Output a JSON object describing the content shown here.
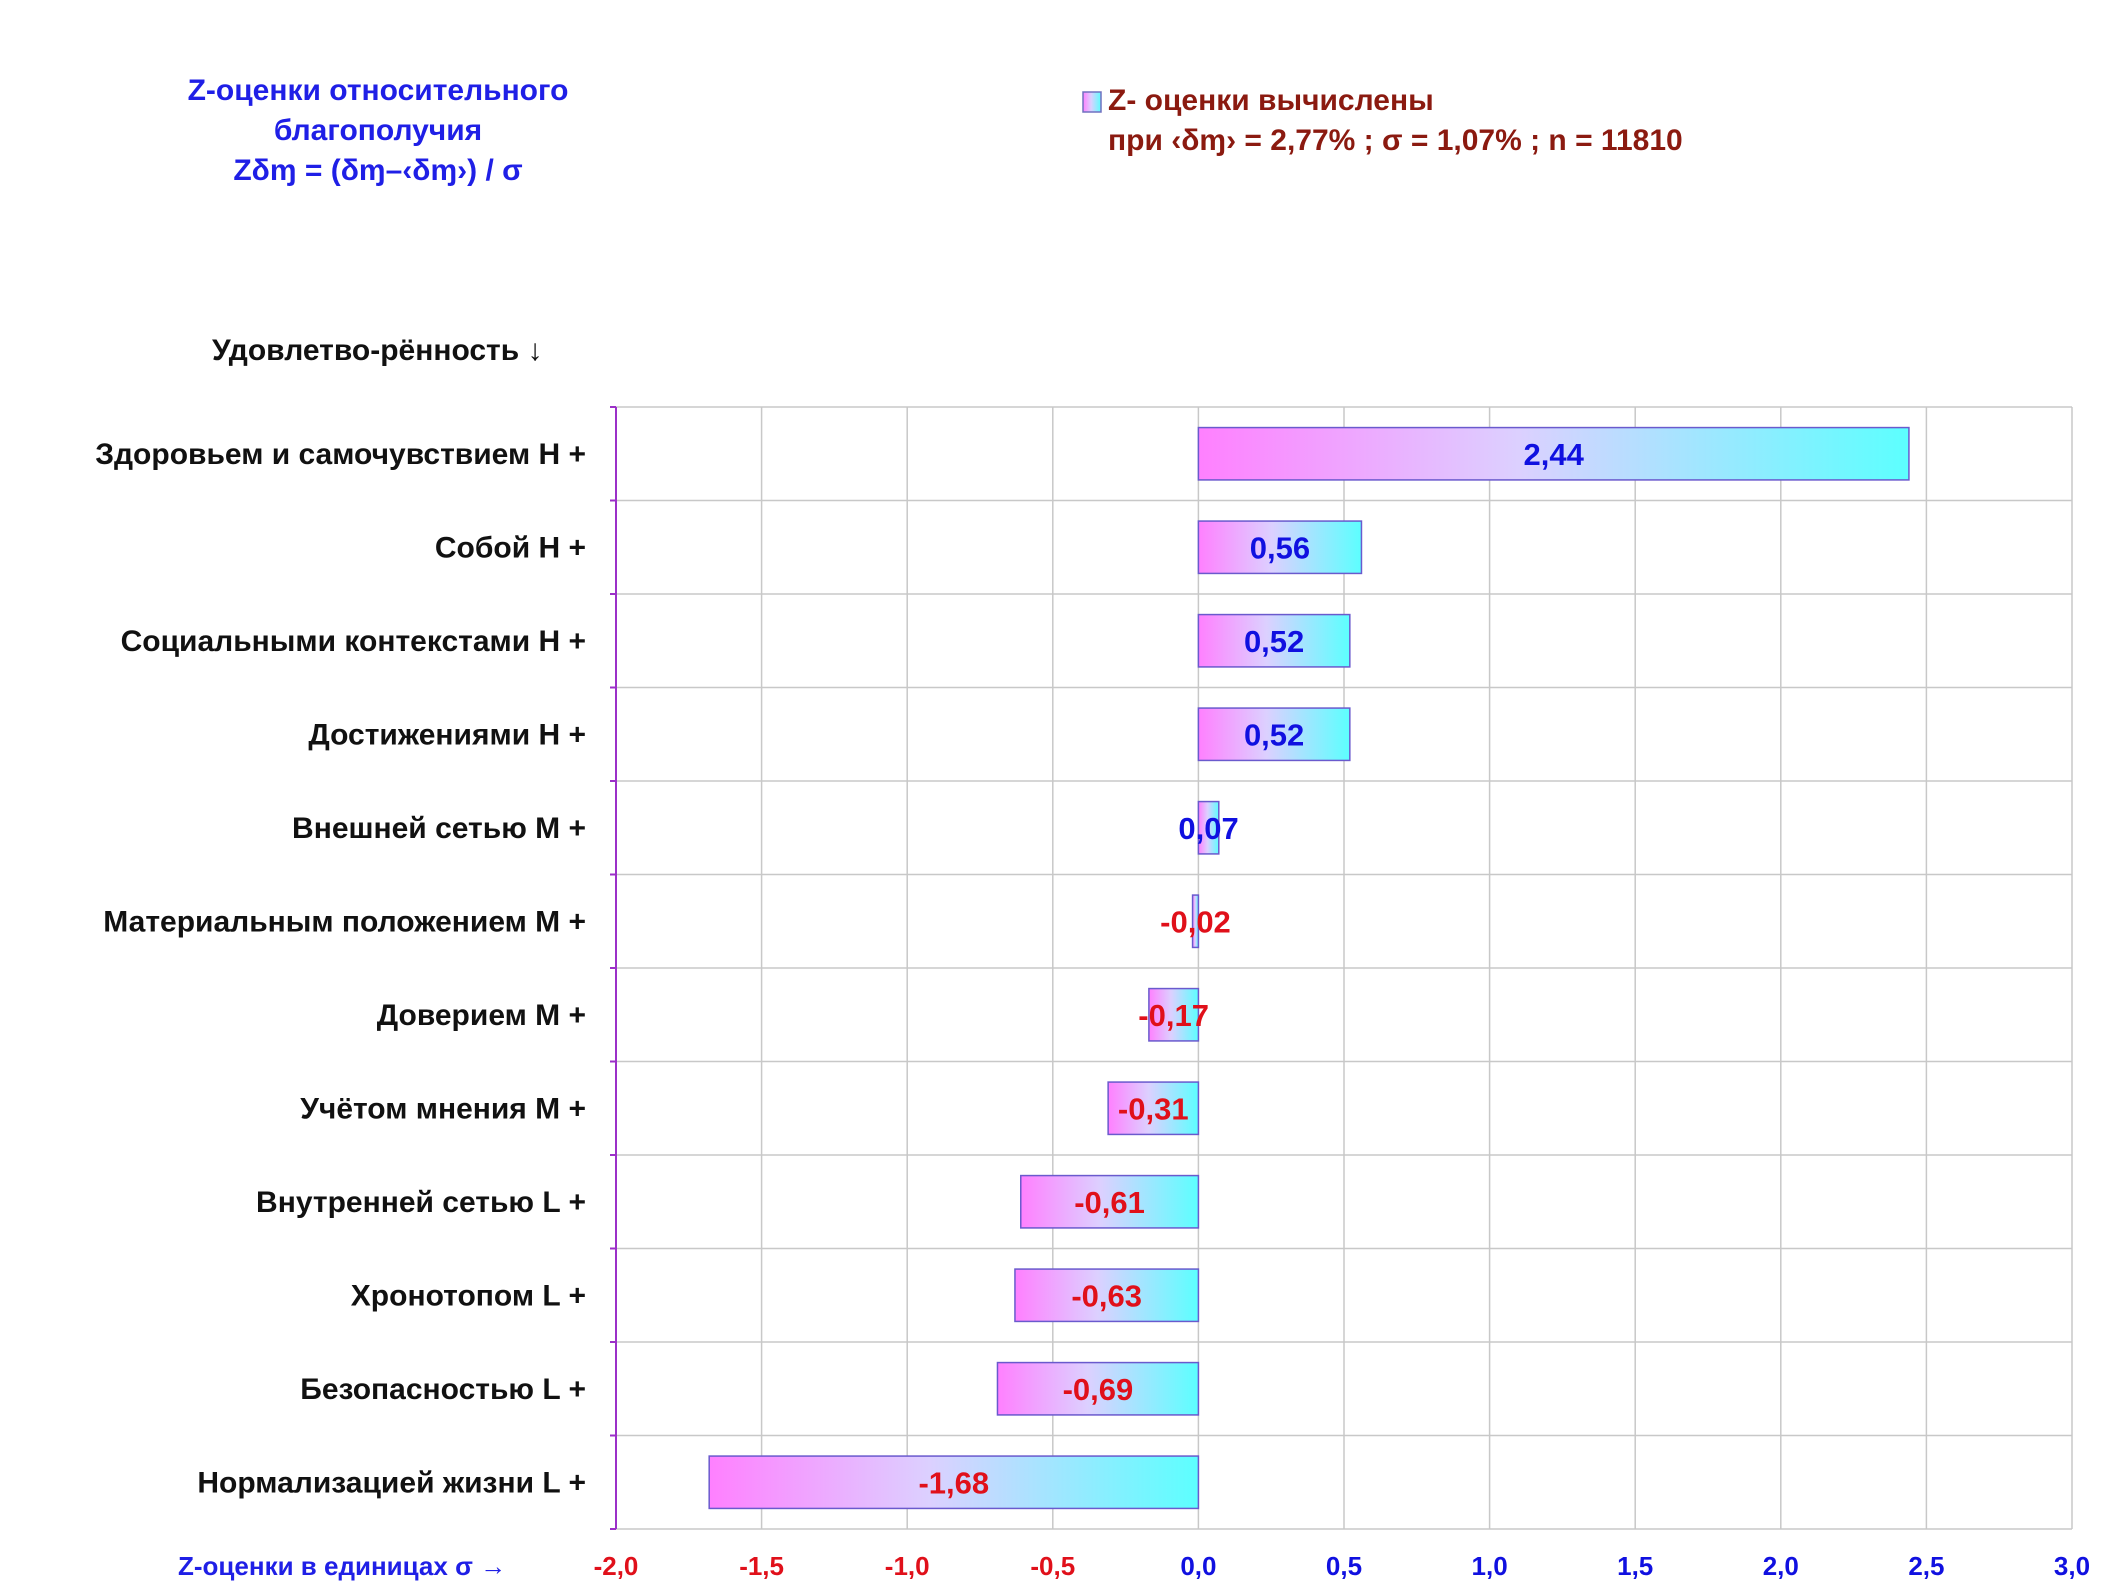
{
  "chart_data": {
    "type": "bar",
    "orientation": "horizontal",
    "title_lines": [
      "Z-оценки  относительного",
      "благополучия",
      "Zδɱ = (δɱ–‹δɱ›)  / σ"
    ],
    "legend": {
      "entry": "Z- оценки вычислены",
      "note": "при ‹δɱ› = 2,77% ; σ = 1,07% ; n = 11810"
    },
    "y_header": "Удовлетво-рённость ↓",
    "xlabel": "Z-оценки в единицах σ →",
    "xlim": [
      -2.0,
      3.0
    ],
    "x_ticks": [
      -2.0,
      -1.5,
      -1.0,
      -0.5,
      0.0,
      0.5,
      1.0,
      1.5,
      2.0,
      2.5,
      3.0
    ],
    "x_tick_labels": [
      "-2,0",
      "-1,5",
      "-1,0",
      "-0,5",
      "0,0",
      "0,5",
      "1,0",
      "1,5",
      "2,0",
      "2,5",
      "3,0"
    ],
    "categories": [
      "Здоровьем и самочувствием  Н +",
      "Собой  Н +",
      "Социальными контекстами  Н +",
      "Достижениями  Н +",
      "Внешней сетью  М +",
      "Материальным положением  М +",
      "Доверием  М +",
      "Учётом мнения  М +",
      "Внутренней сетью  L +",
      "Хронотопом  L +",
      "Безопасностью  L +",
      "Нормализацией жизни  L +"
    ],
    "values": [
      2.44,
      0.56,
      0.52,
      0.52,
      0.07,
      -0.02,
      -0.17,
      -0.31,
      -0.61,
      -0.63,
      -0.69,
      -1.68
    ],
    "value_labels": [
      "2,44",
      "0,56",
      "0,52",
      "0,52",
      "0,07",
      "-0,02",
      "-0,17",
      "-0,31",
      "-0,61",
      "-0,63",
      "-0,69",
      "-1,68"
    ],
    "grid": true,
    "colors": {
      "positive_text": "#1010e0",
      "negative_text": "#e0101a",
      "bar_gradient_start": "#ff80ff",
      "bar_gradient_end": "#5cffff",
      "axis_line": "#9b30c8"
    }
  }
}
